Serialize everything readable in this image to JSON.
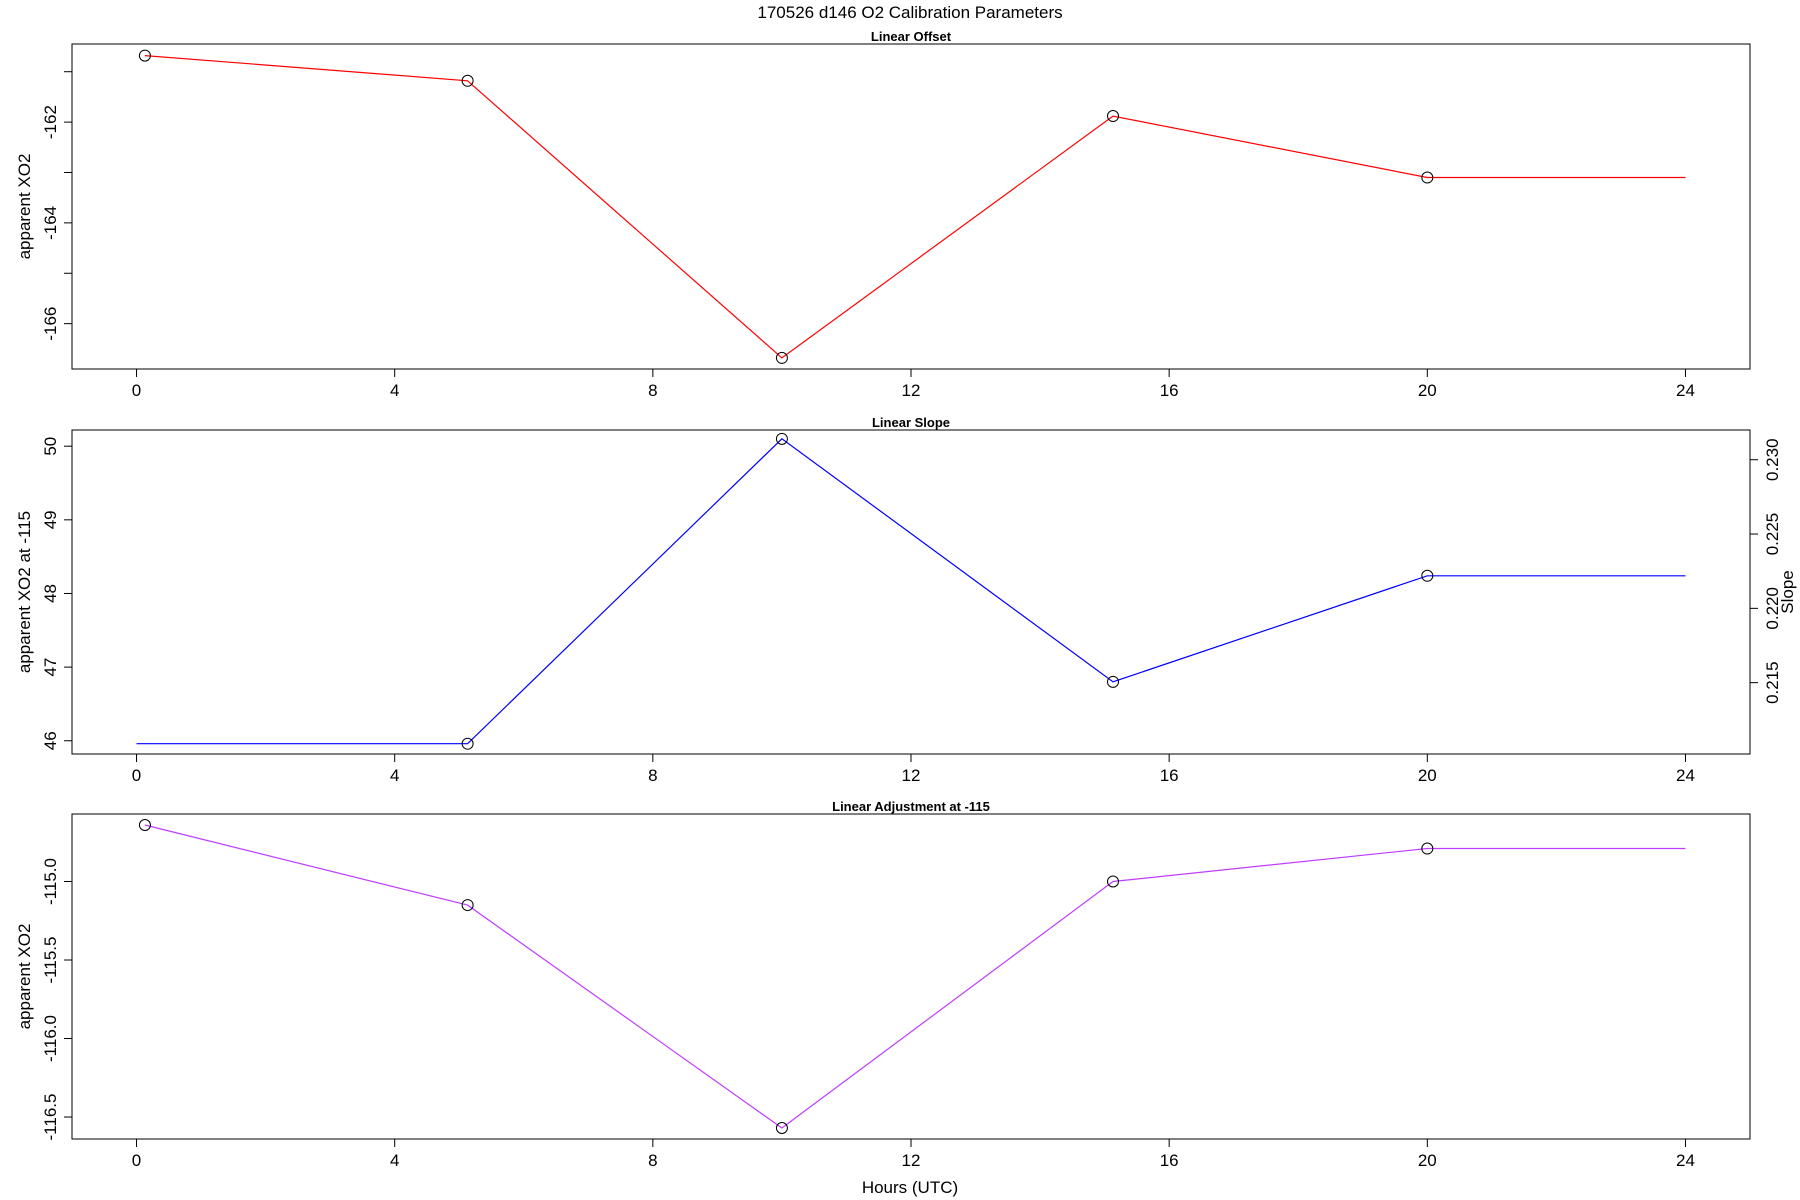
{
  "figure": {
    "title": "170526   d146   O2 Calibration Parameters",
    "xlabel": "Hours (UTC)"
  },
  "chart_data": [
    {
      "type": "line",
      "title": "Linear Offset",
      "ylabel": "apparent XO2",
      "xlim": [
        -1.0,
        25.0
      ],
      "ylim": [
        -166.9,
        -160.45
      ],
      "xticks": [
        0,
        4,
        8,
        12,
        16,
        20,
        24
      ],
      "xtick_labels": [
        "0",
        "4",
        "8",
        "12",
        "16",
        "20",
        "24"
      ],
      "yticks": [
        -166,
        -165,
        -164,
        -163,
        -162,
        -161
      ],
      "ytick_labels": [
        "-166",
        "",
        "-164",
        "",
        "-162",
        ""
      ],
      "line_color": "#ff0000",
      "grid": false,
      "series": [
        {
          "x": [
            0.13,
            5.13,
            10.0,
            15.13,
            20.0,
            24.0
          ],
          "y": [
            -160.68,
            -161.18,
            -166.68,
            -161.88,
            -163.1,
            -163.1
          ],
          "markers": [
            true,
            true,
            true,
            true,
            true,
            false
          ]
        }
      ]
    },
    {
      "type": "line",
      "title": "Linear Slope",
      "ylabel": "apparent XO2 at -115",
      "ylabel_right": "Slope",
      "xlim": [
        -1.0,
        25.0
      ],
      "ylim": [
        45.82,
        50.22
      ],
      "y2lim": [
        0.2102,
        0.232
      ],
      "xticks": [
        0,
        4,
        8,
        12,
        16,
        20,
        24
      ],
      "xtick_labels": [
        "0",
        "4",
        "8",
        "12",
        "16",
        "20",
        "24"
      ],
      "yticks": [
        46,
        47,
        48,
        49,
        50
      ],
      "ytick_labels": [
        "46",
        "47",
        "48",
        "49",
        "50"
      ],
      "y2ticks": [
        0.215,
        0.22,
        0.225,
        0.23
      ],
      "y2tick_labels": [
        "0.215",
        "0.220",
        "0.225",
        "0.230"
      ],
      "line_color": "#0000ff",
      "grid": false,
      "series": [
        {
          "x": [
            0.0,
            5.13,
            10.0,
            15.13,
            20.0,
            24.0
          ],
          "y": [
            45.96,
            45.96,
            50.1,
            46.8,
            48.24,
            48.24
          ],
          "markers": [
            false,
            true,
            true,
            true,
            true,
            false
          ]
        }
      ]
    },
    {
      "type": "line",
      "title": "Linear Adjustment at -115",
      "ylabel": "apparent XO2",
      "xlim": [
        -1.0,
        25.0
      ],
      "ylim": [
        -116.64,
        -114.57
      ],
      "xticks": [
        0,
        4,
        8,
        12,
        16,
        20,
        24
      ],
      "xtick_labels": [
        "0",
        "4",
        "8",
        "12",
        "16",
        "20",
        "24"
      ],
      "yticks": [
        -116.5,
        -116.0,
        -115.5,
        -115.0
      ],
      "ytick_labels": [
        "-116.5",
        "-116.0",
        "-115.5",
        "-115.0"
      ],
      "line_color": "#c03cff",
      "grid": false,
      "series": [
        {
          "x": [
            0.13,
            5.13,
            10.0,
            15.13,
            20.0,
            24.0
          ],
          "y": [
            -114.64,
            -115.15,
            -116.57,
            -115.0,
            -114.79,
            -114.79
          ],
          "markers": [
            true,
            true,
            true,
            true,
            true,
            false
          ]
        }
      ]
    }
  ]
}
